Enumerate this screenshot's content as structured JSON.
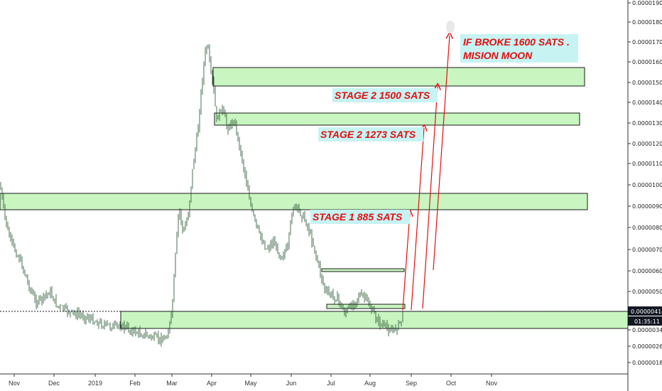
{
  "chart_data": {
    "type": "candlestick",
    "y_axis": {
      "unit": "BTC",
      "range": [
        1.4e-06,
        1.94e-06
      ],
      "ticks": [
        "0.00000180",
        "0.00000260",
        "0.00000340",
        "0.00000420",
        "0.00000500",
        "0.00000600",
        "0.00000700",
        "0.00000800",
        "0.00000900",
        "0.00001000",
        "0.00001100",
        "0.00001200",
        "0.00001300",
        "0.00001400",
        "0.00001500",
        "0.00001600",
        "0.00001700",
        "0.00001800",
        "0.00001900"
      ],
      "current_price": "0.00000414",
      "countdown": "01:35:11"
    },
    "x_axis": {
      "ticks": [
        "Nov",
        "Dec",
        "2019",
        "Feb",
        "Mar",
        "Apr",
        "May",
        "Jun",
        "Jul",
        "Aug",
        "Sep",
        "Oct",
        "Nov"
      ]
    },
    "annotations": [
      {
        "text": "STAGE 1 885 SATS"
      },
      {
        "text": "STAGE 2 1273 SATS"
      },
      {
        "text": "STAGE 2 1500 SATS"
      },
      {
        "text": "IF BROKE 1600 SATS .",
        "text2": "MISION MOON"
      }
    ],
    "zones": [
      {
        "name": "support-zone",
        "low": 3.4e-06,
        "high": 4.2e-06
      },
      {
        "name": "stage1-zone",
        "low": 8.7e-06,
        "high": 9.5e-06
      },
      {
        "name": "stage2-zone-1273",
        "low": 1.28e-05,
        "high": 1.34e-05
      },
      {
        "name": "stage2-zone-1500",
        "low": 1.48e-05,
        "high": 1.57e-05
      }
    ],
    "colors": {
      "zone_fill": "#c8f5c0",
      "zone_stroke": "#1a1a1a",
      "candle": "#1e4d2b",
      "arrow": "#e01010",
      "annotation_bg": "#c7f3f3",
      "price_badge": "#131722"
    }
  }
}
